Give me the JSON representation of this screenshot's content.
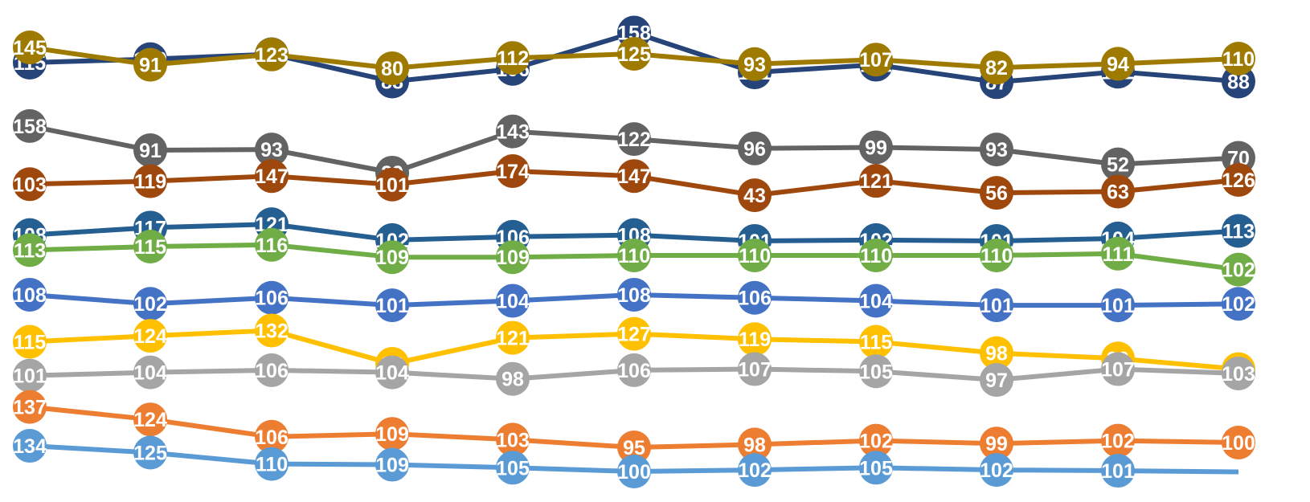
{
  "chart_data": {
    "type": "line",
    "title": "",
    "xlabel": "",
    "ylabel": "",
    "grid": false,
    "legend": "none",
    "x": [
      1,
      2,
      3,
      4,
      5,
      6,
      7,
      8,
      9,
      10,
      11
    ],
    "series": [
      {
        "color": "#264478",
        "values": [
          115,
          120,
          127,
          88,
          106,
          158,
          101,
          112,
          87,
          102,
          88
        ]
      },
      {
        "color": "#9E7B00",
        "values": [
          145,
          91,
          123,
          80,
          112,
          125,
          93,
          107,
          82,
          94,
          110
        ]
      },
      {
        "color": "#636363",
        "values": [
          158,
          91,
          93,
          29,
          143,
          122,
          96,
          99,
          93,
          52,
          70
        ]
      },
      {
        "color": "#9E480E",
        "values": [
          103,
          119,
          147,
          101,
          174,
          147,
          43,
          121,
          56,
          63,
          126
        ]
      },
      {
        "color": "#255E91",
        "values": [
          108,
          117,
          121,
          102,
          106,
          108,
          101,
          102,
          101,
          104,
          113
        ]
      },
      {
        "color": "#70AD47",
        "values": [
          113,
          115,
          116,
          109,
          109,
          110,
          110,
          110,
          110,
          111,
          102
        ]
      },
      {
        "color": "#4472C4",
        "values": [
          108,
          102,
          106,
          101,
          104,
          108,
          106,
          104,
          101,
          101,
          102
        ]
      },
      {
        "color": "#FFC000",
        "values": [
          115,
          124,
          132,
          82,
          121,
          127,
          119,
          115,
          98,
          90,
          74
        ]
      },
      {
        "color": "#A5A5A5",
        "values": [
          101,
          104,
          106,
          104,
          98,
          106,
          107,
          105,
          97,
          107,
          103
        ]
      },
      {
        "color": "#ED7D31",
        "values": [
          137,
          124,
          106,
          109,
          103,
          95,
          98,
          102,
          99,
          102,
          100
        ]
      },
      {
        "color": "#5B9BD5",
        "values": [
          134,
          125,
          110,
          109,
          105,
          100,
          102,
          105,
          102,
          101,
          null
        ]
      }
    ]
  }
}
